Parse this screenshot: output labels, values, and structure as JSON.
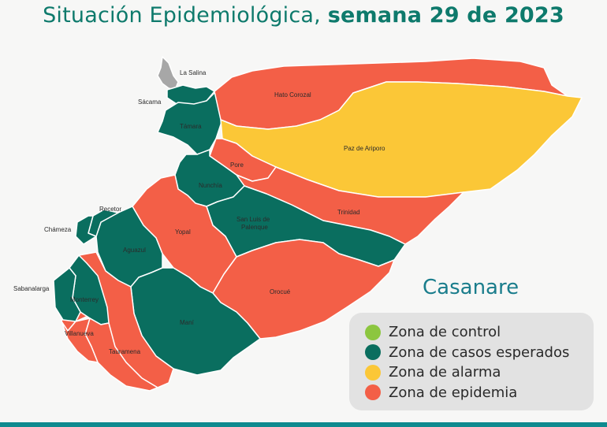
{
  "title": {
    "prefix": "Situación Epidemiológica,",
    "bold": "semana 29 de 2023"
  },
  "department": "Casanare",
  "colors": {
    "control": "#8cc63f",
    "esperados": "#0a6e5f",
    "alarma": "#fbc737",
    "epidemia": "#f35f47",
    "sin_dato": "#a7a7a7"
  },
  "legend": [
    {
      "label": "Zona de control",
      "color": "#8cc63f"
    },
    {
      "label": "Zona de casos esperados",
      "color": "#0a6e5f"
    },
    {
      "label": "Zona de alarma",
      "color": "#fbc737"
    },
    {
      "label": "Zona de epidemia",
      "color": "#f35f47"
    }
  ],
  "municipalities": {
    "la_salina": "La Salina",
    "sacama": "Sácama",
    "tamara": "Támara",
    "hato_corozal": "Hato Corozal",
    "paz_de_ariporo": "Paz de Ariporo",
    "pore": "Pore",
    "nunchia": "Nunchía",
    "trinidad": "Trinidad",
    "recetor": "Recetor",
    "chameza": "Chámeza",
    "san_luis_line1": "San Luis de",
    "san_luis_line2": "Palenque",
    "yopal": "Yopal",
    "aguazul": "Aguazul",
    "sabanalarga": "Sabanalarga",
    "monterrey": "Monterrey",
    "orocue": "Orocué",
    "villanueva": "Villanueva",
    "mani": "Maní",
    "tauramena": "Tauramena"
  }
}
